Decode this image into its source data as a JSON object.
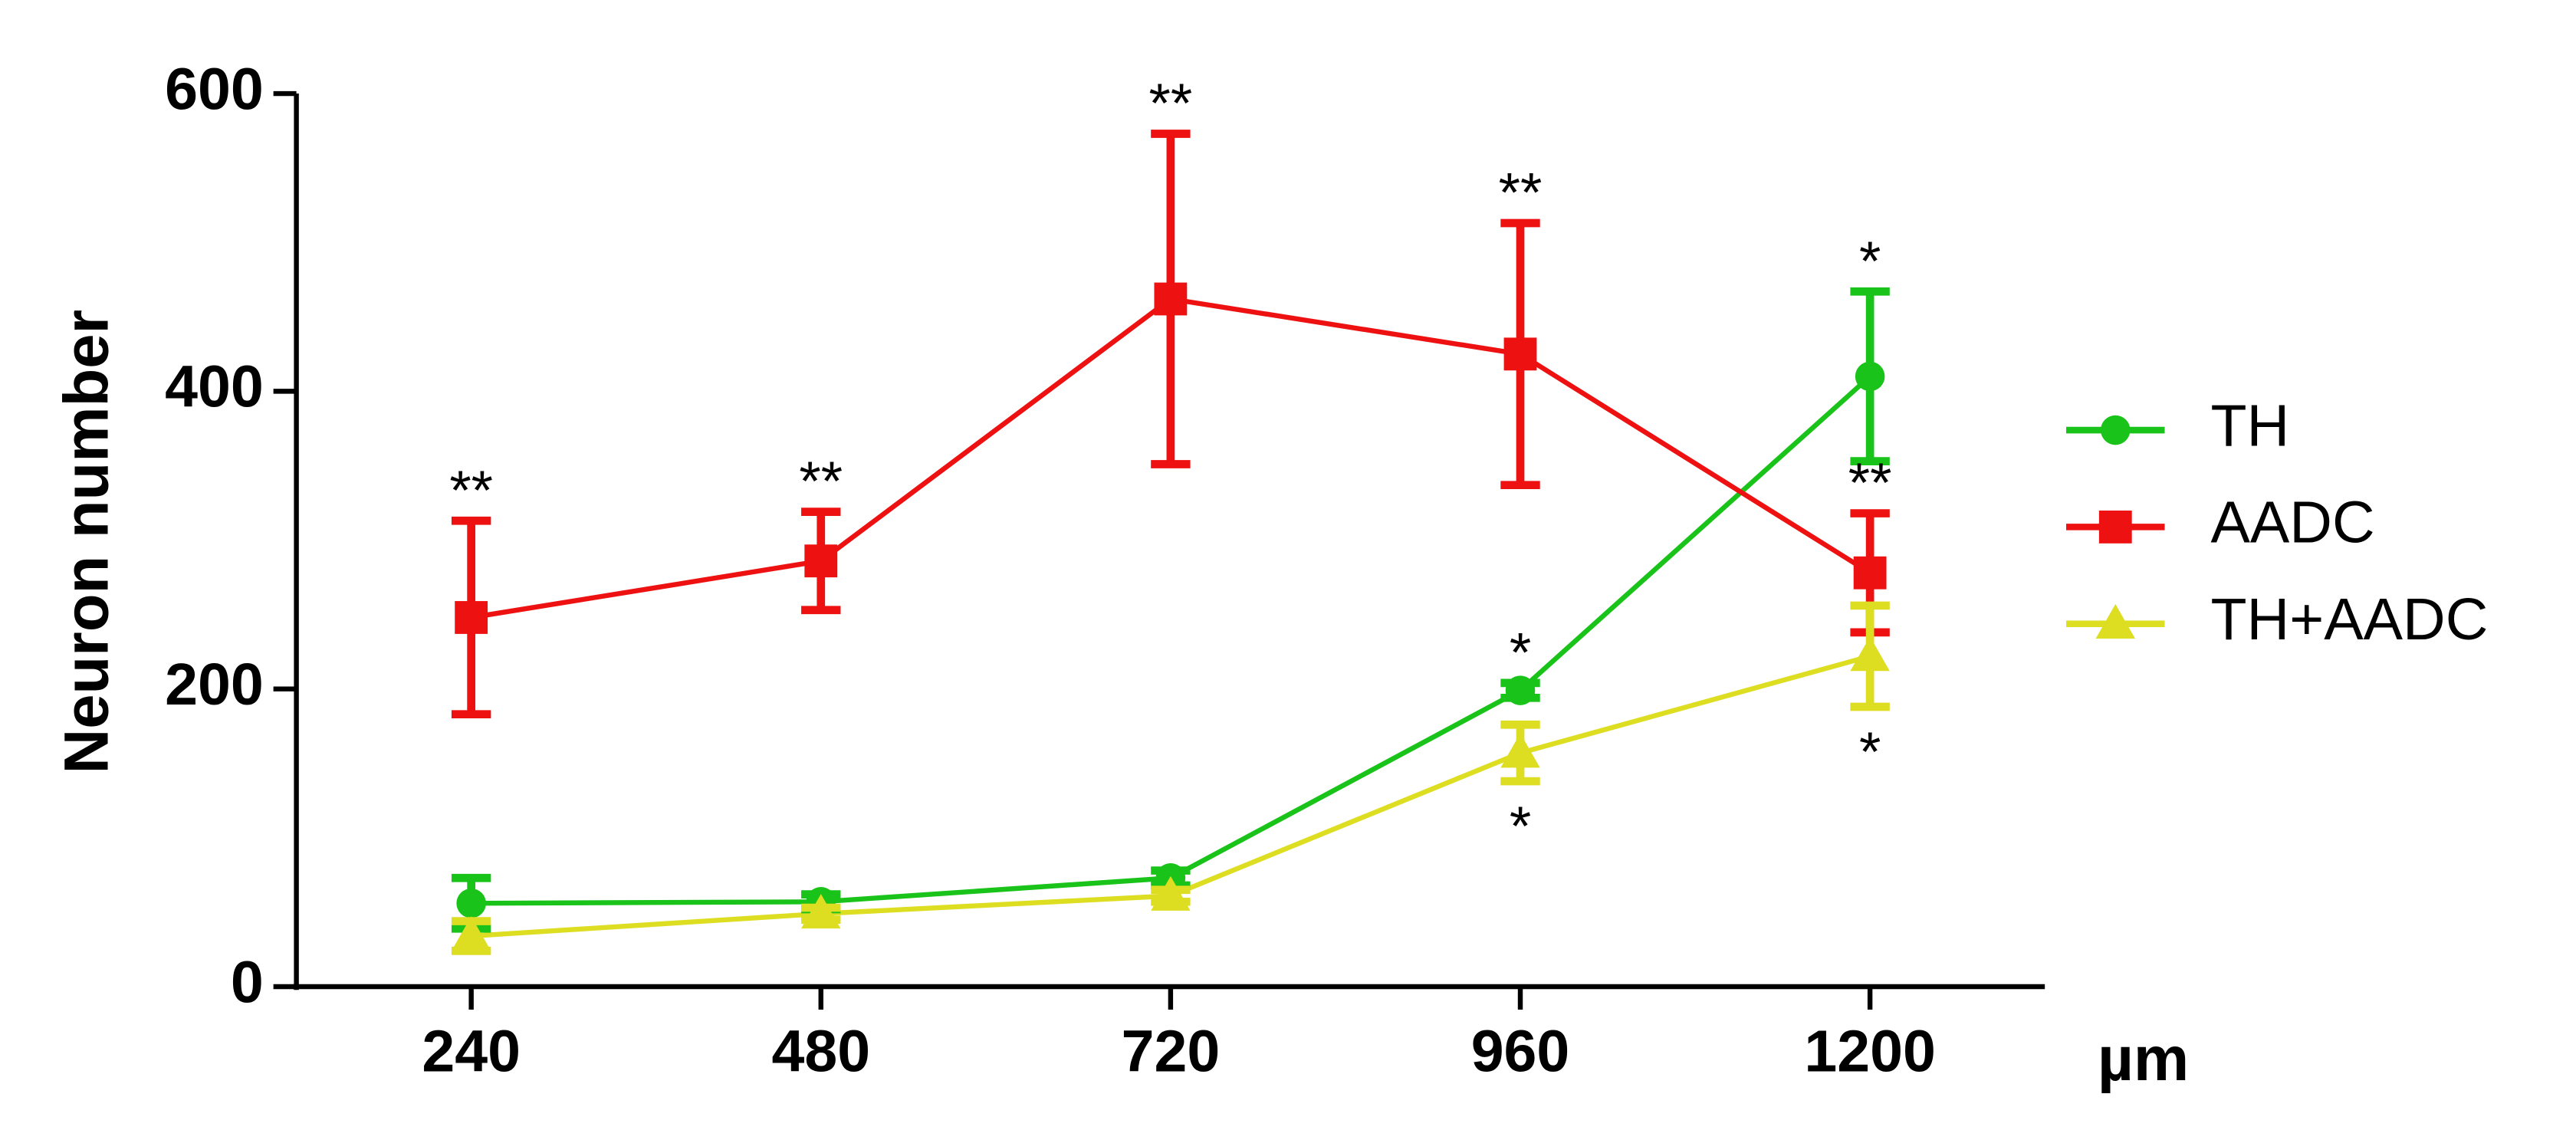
{
  "chart_data": {
    "type": "line",
    "y_label": "Neuron number",
    "x_label": "µm",
    "x": [
      240,
      480,
      720,
      960,
      1200
    ],
    "xlim": [
      120,
      1320
    ],
    "xticks": [
      240,
      480,
      720,
      960,
      1200
    ],
    "ylim": [
      0,
      600
    ],
    "yticks": [
      0,
      200,
      400,
      600
    ],
    "series": [
      {
        "name": "TH",
        "color": "#19c319",
        "marker": "circle",
        "values": [
          56,
          57,
          73,
          199,
          410
        ],
        "errors": [
          17,
          5,
          5,
          5,
          57
        ],
        "annotations": [
          null,
          null,
          null,
          "*",
          "*"
        ]
      },
      {
        "name": "AADC",
        "color": "#ee1111",
        "marker": "square",
        "values": [
          248,
          286,
          462,
          425,
          278
        ],
        "errors": [
          65,
          33,
          111,
          88,
          40
        ],
        "annotations": [
          "**",
          "**",
          "**",
          "**",
          "**"
        ]
      },
      {
        "name": "TH+AADC",
        "color": "#dddd22",
        "marker": "triangle",
        "values": [
          34,
          49,
          61,
          157,
          222
        ],
        "errors": [
          10,
          4,
          4,
          19,
          34
        ],
        "annotations": [
          null,
          null,
          null,
          "*",
          "*"
        ],
        "annotations_below": true
      }
    ]
  }
}
